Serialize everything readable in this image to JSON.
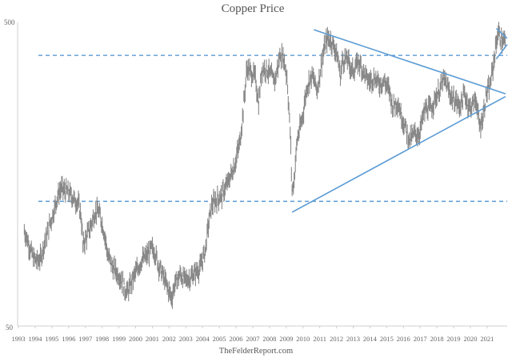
{
  "chart_data": {
    "type": "line",
    "title": "Copper Price",
    "source": "TheFelderReport.com",
    "y_scale": "log",
    "ylim": [
      50,
      500
    ],
    "y_tick_labels": [
      "500",
      "50"
    ],
    "x_tick_labels": [
      "1993",
      "1994",
      "1995",
      "1996",
      "1997",
      "1998",
      "1999",
      "2000",
      "2001",
      "2002",
      "2003",
      "2004",
      "2005",
      "2006",
      "2007",
      "2008",
      "2009",
      "2010",
      "2011",
      "2012",
      "2013",
      "2014",
      "2015",
      "2016",
      "2017",
      "2018",
      "2019",
      "2020",
      "2021"
    ],
    "xlim": [
      1992.6,
      2021.85
    ],
    "grid": false,
    "colors": {
      "price": "#888888",
      "trendline": "#5b9bd5",
      "dashed_level": "#5b9bd5"
    },
    "series": [
      {
        "values": [
          [
            1993.0,
            103
          ],
          [
            1993.2,
            96
          ],
          [
            1993.4,
            88
          ],
          [
            1993.6,
            83
          ],
          [
            1993.8,
            82
          ],
          [
            1994.0,
            84
          ],
          [
            1994.2,
            94
          ],
          [
            1994.5,
            107
          ],
          [
            1994.8,
            122
          ],
          [
            1995.0,
            135
          ],
          [
            1995.2,
            142
          ],
          [
            1995.4,
            140
          ],
          [
            1995.6,
            138
          ],
          [
            1995.8,
            135
          ],
          [
            1996.0,
            130
          ],
          [
            1996.2,
            128
          ],
          [
            1996.4,
            115
          ],
          [
            1996.5,
            92
          ],
          [
            1996.7,
            98
          ],
          [
            1997.0,
            108
          ],
          [
            1997.2,
            118
          ],
          [
            1997.4,
            120
          ],
          [
            1997.6,
            112
          ],
          [
            1997.8,
            100
          ],
          [
            1998.0,
            85
          ],
          [
            1998.3,
            78
          ],
          [
            1998.6,
            74
          ],
          [
            1998.8,
            72
          ],
          [
            1999.0,
            66
          ],
          [
            1999.2,
            65
          ],
          [
            1999.5,
            72
          ],
          [
            1999.8,
            78
          ],
          [
            2000.0,
            82
          ],
          [
            2000.3,
            85
          ],
          [
            2000.6,
            90
          ],
          [
            2000.8,
            88
          ],
          [
            2001.0,
            80
          ],
          [
            2001.3,
            73
          ],
          [
            2001.6,
            66
          ],
          [
            2001.8,
            62
          ],
          [
            2002.0,
            69
          ],
          [
            2002.3,
            74
          ],
          [
            2002.6,
            71
          ],
          [
            2002.9,
            72
          ],
          [
            2003.2,
            75
          ],
          [
            2003.5,
            78
          ],
          [
            2003.8,
            88
          ],
          [
            2004.0,
            108
          ],
          [
            2004.2,
            125
          ],
          [
            2004.5,
            131
          ],
          [
            2004.8,
            135
          ],
          [
            2005.0,
            142
          ],
          [
            2005.3,
            155
          ],
          [
            2005.6,
            172
          ],
          [
            2005.9,
            205
          ],
          [
            2006.1,
            265
          ],
          [
            2006.3,
            355
          ],
          [
            2006.5,
            345
          ],
          [
            2006.8,
            330
          ],
          [
            2007.0,
            270
          ],
          [
            2007.2,
            355
          ],
          [
            2007.5,
            350
          ],
          [
            2007.8,
            330
          ],
          [
            2008.0,
            325
          ],
          [
            2008.3,
            395
          ],
          [
            2008.5,
            380
          ],
          [
            2008.7,
            330
          ],
          [
            2008.9,
            210
          ],
          [
            2009.0,
            140
          ],
          [
            2009.1,
            148
          ],
          [
            2009.3,
            205
          ],
          [
            2009.6,
            240
          ],
          [
            2009.9,
            310
          ],
          [
            2010.2,
            335
          ],
          [
            2010.5,
            300
          ],
          [
            2010.8,
            380
          ],
          [
            2011.0,
            425
          ],
          [
            2011.1,
            445
          ],
          [
            2011.4,
            430
          ],
          [
            2011.7,
            390
          ],
          [
            2011.9,
            330
          ],
          [
            2012.0,
            375
          ],
          [
            2012.3,
            380
          ],
          [
            2012.6,
            345
          ],
          [
            2012.9,
            365
          ],
          [
            2013.0,
            372
          ],
          [
            2013.3,
            340
          ],
          [
            2013.6,
            320
          ],
          [
            2013.9,
            330
          ],
          [
            2014.2,
            315
          ],
          [
            2014.5,
            320
          ],
          [
            2014.8,
            300
          ],
          [
            2015.0,
            265
          ],
          [
            2015.3,
            275
          ],
          [
            2015.6,
            240
          ],
          [
            2015.9,
            215
          ],
          [
            2016.0,
            205
          ],
          [
            2016.3,
            215
          ],
          [
            2016.6,
            215
          ],
          [
            2016.9,
            255
          ],
          [
            2017.0,
            260
          ],
          [
            2017.3,
            260
          ],
          [
            2017.6,
            285
          ],
          [
            2017.9,
            305
          ],
          [
            2018.0,
            325
          ],
          [
            2018.2,
            315
          ],
          [
            2018.5,
            285
          ],
          [
            2018.8,
            275
          ],
          [
            2019.0,
            265
          ],
          [
            2019.3,
            290
          ],
          [
            2019.6,
            262
          ],
          [
            2019.9,
            275
          ],
          [
            2020.0,
            280
          ],
          [
            2020.2,
            225
          ],
          [
            2020.4,
            245
          ],
          [
            2020.6,
            290
          ],
          [
            2020.8,
            305
          ],
          [
            2021.0,
            355
          ],
          [
            2021.15,
            410
          ],
          [
            2021.3,
            465
          ],
          [
            2021.45,
            445
          ],
          [
            2021.6,
            430
          ],
          [
            2021.75,
            440
          ]
        ]
      }
    ],
    "reference_lines": [
      {
        "style": "dashed",
        "y": 128.7
      },
      {
        "style": "dashed",
        "y": 389.3
      }
    ],
    "trendlines": [
      {
        "points": [
          [
            2009.0,
            118.5
          ],
          [
            2021.75,
            285
          ]
        ]
      },
      {
        "points": [
          [
            2010.3,
            473
          ],
          [
            2021.75,
            291
          ]
        ]
      },
      {
        "points": [
          [
            2021.2,
            379
          ],
          [
            2021.85,
            423
          ]
        ]
      },
      {
        "points": [
          [
            2021.2,
            478
          ],
          [
            2021.85,
            443
          ]
        ]
      }
    ]
  }
}
